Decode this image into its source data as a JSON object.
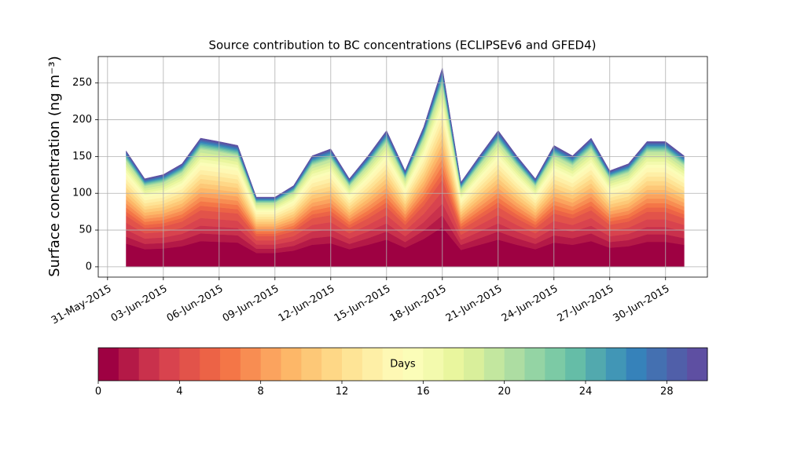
{
  "chart_data": {
    "type": "stacked_area",
    "title": "Source contribution to BC concentrations (ECLIPSEv6 and GFED4)",
    "y_label": "Surface concentration (ng m⁻³)",
    "x": [
      "2015-06-01",
      "2015-06-02",
      "2015-06-03",
      "2015-06-04",
      "2015-06-05",
      "2015-06-06",
      "2015-06-07",
      "2015-06-08",
      "2015-06-09",
      "2015-06-10",
      "2015-06-11",
      "2015-06-12",
      "2015-06-13",
      "2015-06-14",
      "2015-06-15",
      "2015-06-16",
      "2015-06-17",
      "2015-06-18",
      "2015-06-19",
      "2015-06-20",
      "2015-06-21",
      "2015-06-22",
      "2015-06-23",
      "2015-06-24",
      "2015-06-25",
      "2015-06-26",
      "2015-06-27",
      "2015-06-28",
      "2015-06-29",
      "2015-06-30",
      "2015-07-01"
    ],
    "xlim": [
      "2015-05-30T12:00",
      "2015-07-02T06:00"
    ],
    "xticks": [
      {
        "value": "2015-05-31",
        "label": "31-May-2015"
      },
      {
        "value": "2015-06-03",
        "label": "03-Jun-2015"
      },
      {
        "value": "2015-06-06",
        "label": "06-Jun-2015"
      },
      {
        "value": "2015-06-09",
        "label": "09-Jun-2015"
      },
      {
        "value": "2015-06-12",
        "label": "12-Jun-2015"
      },
      {
        "value": "2015-06-15",
        "label": "15-Jun-2015"
      },
      {
        "value": "2015-06-18",
        "label": "18-Jun-2015"
      },
      {
        "value": "2015-06-21",
        "label": "21-Jun-2015"
      },
      {
        "value": "2015-06-24",
        "label": "24-Jun-2015"
      },
      {
        "value": "2015-06-27",
        "label": "27-Jun-2015"
      },
      {
        "value": "2015-06-30",
        "label": "30-Jun-2015"
      }
    ],
    "ylim": [
      -14,
      286
    ],
    "yticks": [
      0,
      50,
      100,
      150,
      200,
      250
    ],
    "grid": true,
    "series": [
      {
        "color": "#9e0142",
        "values": [
          31.6,
          24,
          25,
          28,
          35,
          34,
          33,
          19,
          19,
          22,
          30,
          32,
          24,
          30,
          37,
          26,
          38,
          54,
          23,
          30,
          37,
          30,
          24,
          33,
          30,
          35,
          26,
          28,
          34,
          34,
          30
        ]
      },
      {
        "color": "#b41947",
        "values": [
          9.5,
          7.2,
          7.5,
          8.4,
          10.5,
          10.2,
          9.9,
          5.7,
          5.7,
          6.6,
          9,
          9.6,
          7.2,
          9,
          11.1,
          7.8,
          11.4,
          16.2,
          6.9,
          9,
          11.1,
          9,
          7.2,
          9.9,
          9,
          10.5,
          7.8,
          8.4,
          10.2,
          10.2,
          9
        ]
      },
      {
        "color": "#c9314c",
        "values": [
          9.5,
          7.2,
          7.5,
          8.4,
          10.5,
          10.2,
          9.9,
          5.7,
          5.7,
          6.6,
          9,
          9.6,
          7.2,
          9,
          11.1,
          7.8,
          11.4,
          16.2,
          6.9,
          9,
          11.1,
          9,
          7.2,
          9.9,
          9,
          10.5,
          7.8,
          8.4,
          10.2,
          10.2,
          9
        ]
      },
      {
        "color": "#d8434e",
        "values": [
          9.5,
          7.2,
          7.5,
          8.4,
          10.5,
          10.2,
          9.9,
          5.7,
          5.7,
          6.6,
          9,
          9.6,
          7.2,
          9,
          11.1,
          7.8,
          11.4,
          16.2,
          6.9,
          9,
          11.1,
          9,
          7.2,
          9.9,
          9,
          10.5,
          7.8,
          8.4,
          10.2,
          10.2,
          9
        ]
      },
      {
        "color": "#e2534a",
        "values": [
          9.5,
          7.2,
          7.5,
          8.4,
          10.5,
          10.2,
          9.9,
          5.7,
          5.7,
          6.6,
          9,
          9.6,
          7.2,
          9,
          11.1,
          7.8,
          11.4,
          16.2,
          6.9,
          9,
          11.1,
          9,
          7.2,
          9.9,
          9,
          10.5,
          7.8,
          8.4,
          10.2,
          10.2,
          9
        ]
      },
      {
        "color": "#ec6346",
        "values": [
          5.5,
          4.2,
          4.4,
          4.9,
          6.1,
          6,
          5.8,
          3.3,
          3.3,
          3.9,
          5.3,
          5.6,
          4.2,
          5.3,
          6.5,
          4.6,
          6.7,
          9.5,
          4,
          5.3,
          6.5,
          5.3,
          4.2,
          5.8,
          5.3,
          6.1,
          4.6,
          4.9,
          6,
          6,
          5.3
        ]
      },
      {
        "color": "#f47647",
        "values": [
          5.5,
          4.2,
          4.4,
          4.9,
          6.1,
          6,
          5.8,
          3.3,
          3.3,
          3.9,
          5.3,
          5.6,
          4.2,
          5.3,
          6.5,
          4.6,
          6.7,
          9.5,
          4,
          5.3,
          6.5,
          5.3,
          4.2,
          5.8,
          5.3,
          6.1,
          4.6,
          4.9,
          6,
          6,
          5.3
        ]
      },
      {
        "color": "#f88d52",
        "values": [
          5.5,
          4.2,
          4.4,
          4.9,
          6.1,
          6,
          5.8,
          3.3,
          3.3,
          3.9,
          5.3,
          5.6,
          4.2,
          5.3,
          6.5,
          4.6,
          6.7,
          9.5,
          4,
          5.3,
          6.5,
          5.3,
          4.2,
          5.8,
          5.3,
          6.1,
          4.6,
          4.9,
          6,
          6,
          5.3
        ]
      },
      {
        "color": "#fba35e",
        "values": [
          5.5,
          4.2,
          4.4,
          4.9,
          6.1,
          6,
          5.8,
          3.3,
          3.3,
          3.9,
          5.3,
          5.6,
          4.2,
          5.3,
          6.5,
          4.6,
          6.7,
          9.5,
          4,
          5.3,
          6.5,
          5.3,
          4.2,
          5.8,
          5.3,
          6.1,
          4.6,
          4.9,
          6,
          6,
          5.3
        ]
      },
      {
        "color": "#fdb768",
        "values": [
          5.5,
          4.2,
          4.4,
          4.9,
          6.1,
          6,
          5.8,
          3.3,
          3.3,
          3.9,
          5.3,
          5.6,
          4.2,
          5.3,
          6.5,
          4.6,
          6.7,
          9.5,
          4,
          5.3,
          6.5,
          5.3,
          4.2,
          5.8,
          5.3,
          6.1,
          4.6,
          4.9,
          6,
          6,
          5.3
        ]
      },
      {
        "color": "#fdc877",
        "values": [
          5.5,
          4.2,
          4.4,
          4.9,
          6.1,
          6,
          5.8,
          3.3,
          3.3,
          3.9,
          5.3,
          5.6,
          4.2,
          5.3,
          6.5,
          4.6,
          6.7,
          9.5,
          4,
          5.3,
          6.5,
          5.3,
          4.2,
          5.8,
          5.3,
          6.1,
          4.6,
          4.9,
          6,
          6,
          5.3
        ]
      },
      {
        "color": "#fed786",
        "values": [
          5.5,
          4.2,
          4.4,
          4.9,
          6.1,
          6,
          5.8,
          3.3,
          3.3,
          3.9,
          5.3,
          5.6,
          4.2,
          5.3,
          6.5,
          4.6,
          6.7,
          9.5,
          4,
          5.3,
          6.5,
          5.3,
          4.2,
          5.8,
          5.3,
          6.1,
          4.6,
          4.9,
          6,
          6,
          5.3
        ]
      },
      {
        "color": "#fee496",
        "values": [
          5.5,
          4.2,
          4.4,
          4.9,
          6.1,
          6,
          5.8,
          3.3,
          3.3,
          3.9,
          5.3,
          5.6,
          4.2,
          5.3,
          6.5,
          4.6,
          6.7,
          9.5,
          4,
          5.3,
          6.5,
          5.3,
          4.2,
          5.8,
          5.3,
          6.1,
          4.6,
          4.9,
          6,
          6,
          5.3
        ]
      },
      {
        "color": "#feefa6",
        "values": [
          5.5,
          4.2,
          4.4,
          4.9,
          6.1,
          6,
          5.8,
          3.3,
          3.3,
          3.9,
          5.3,
          5.6,
          4.2,
          5.3,
          6.5,
          4.6,
          6.7,
          9.5,
          4,
          5.3,
          6.5,
          5.3,
          4.2,
          5.8,
          5.3,
          6.1,
          4.6,
          4.9,
          6,
          6,
          5.3
        ]
      },
      {
        "color": "#fef8b4",
        "values": [
          5.5,
          4.2,
          4.4,
          4.9,
          6.1,
          6,
          5.8,
          3.3,
          3.3,
          3.9,
          5.3,
          5.6,
          4.2,
          5.3,
          6.5,
          4.6,
          6.7,
          9.5,
          4,
          5.3,
          6.5,
          5.3,
          4.2,
          5.8,
          5.3,
          6.1,
          4.6,
          4.9,
          6,
          6,
          5.3
        ]
      },
      {
        "color": "#fbfdb8",
        "values": [
          4,
          3,
          3.1,
          3.5,
          4.4,
          4.3,
          4.1,
          2.4,
          2.4,
          2.8,
          3.8,
          4,
          3,
          3.8,
          4.6,
          3.3,
          4.8,
          6.8,
          2.9,
          3.8,
          4.6,
          3.8,
          3,
          4.1,
          3.8,
          4.4,
          3.3,
          3.5,
          4.3,
          4.3,
          3.8
        ]
      },
      {
        "color": "#f3faad",
        "values": [
          4,
          3,
          3.1,
          3.5,
          4.4,
          4.3,
          4.1,
          2.4,
          2.4,
          2.8,
          3.8,
          4,
          3,
          3.8,
          4.6,
          3.3,
          4.8,
          6.8,
          2.9,
          3.8,
          4.6,
          3.8,
          3,
          4.1,
          3.8,
          4.4,
          3.3,
          3.5,
          4.3,
          4.3,
          3.8
        ]
      },
      {
        "color": "#e9f69e",
        "values": [
          4,
          3,
          3.1,
          3.5,
          4.4,
          4.3,
          4.1,
          2.4,
          2.4,
          2.8,
          3.8,
          4,
          3,
          3.8,
          4.6,
          3.3,
          4.8,
          6.8,
          2.9,
          3.8,
          4.6,
          3.8,
          3,
          4.1,
          3.8,
          4.4,
          3.3,
          3.5,
          4.3,
          4.3,
          3.8
        ]
      },
      {
        "color": "#d9ef9b",
        "values": [
          4,
          3,
          3.1,
          3.5,
          4.4,
          4.3,
          4.1,
          2.4,
          2.4,
          2.8,
          3.8,
          4,
          3,
          3.8,
          4.6,
          3.3,
          4.8,
          6.8,
          2.9,
          3.8,
          4.6,
          3.8,
          3,
          4.1,
          3.8,
          4.4,
          3.3,
          3.5,
          4.3,
          4.3,
          3.8
        ]
      },
      {
        "color": "#c3e79f",
        "values": [
          4,
          3,
          3.1,
          3.5,
          4.4,
          4.3,
          4.1,
          2.4,
          2.4,
          2.8,
          3.8,
          4,
          3,
          3.8,
          4.6,
          3.3,
          4.8,
          6.8,
          2.9,
          3.8,
          4.6,
          3.8,
          3,
          4.1,
          3.8,
          4.4,
          3.3,
          3.5,
          4.3,
          4.3,
          3.8
        ]
      },
      {
        "color": "#addda2",
        "values": [
          1.3,
          1,
          1.1,
          1.2,
          1.5,
          1.4,
          1.4,
          0.8,
          0.8,
          0.9,
          1.3,
          1.4,
          1,
          1.3,
          1.6,
          1.1,
          1.6,
          2.3,
          1,
          1.3,
          1.6,
          1.3,
          1,
          1.4,
          1.3,
          1.5,
          1.1,
          1.2,
          1.4,
          1.4,
          1.3
        ]
      },
      {
        "color": "#94d4a4",
        "values": [
          1.3,
          1,
          1.1,
          1.2,
          1.5,
          1.4,
          1.4,
          0.8,
          0.8,
          0.9,
          1.3,
          1.4,
          1,
          1.3,
          1.6,
          1.1,
          1.6,
          2.3,
          1,
          1.3,
          1.6,
          1.3,
          1,
          1.4,
          1.3,
          1.5,
          1.1,
          1.2,
          1.4,
          1.4,
          1.3
        ]
      },
      {
        "color": "#7ccaa5",
        "values": [
          1.3,
          1,
          1.1,
          1.2,
          1.5,
          1.4,
          1.4,
          0.8,
          0.8,
          0.9,
          1.3,
          1.4,
          1,
          1.3,
          1.6,
          1.1,
          1.6,
          2.3,
          1,
          1.3,
          1.6,
          1.3,
          1,
          1.4,
          1.3,
          1.5,
          1.1,
          1.2,
          1.4,
          1.4,
          1.3
        ]
      },
      {
        "color": "#65bda7",
        "values": [
          1.3,
          1,
          1.1,
          1.2,
          1.5,
          1.4,
          1.4,
          0.8,
          0.8,
          0.9,
          1.3,
          1.4,
          1,
          1.3,
          1.6,
          1.1,
          1.6,
          2.3,
          1,
          1.3,
          1.6,
          1.3,
          1,
          1.4,
          1.3,
          1.5,
          1.1,
          1.2,
          1.4,
          1.4,
          1.3
        ]
      },
      {
        "color": "#52a9ae",
        "values": [
          1.3,
          1,
          1.1,
          1.2,
          1.5,
          1.4,
          1.4,
          0.8,
          0.8,
          0.9,
          1.3,
          1.4,
          1,
          1.3,
          1.6,
          1.1,
          1.6,
          2.3,
          1,
          1.3,
          1.6,
          1.3,
          1,
          1.4,
          1.3,
          1.5,
          1.1,
          1.2,
          1.4,
          1.4,
          1.3
        ]
      },
      {
        "color": "#4196b6",
        "values": [
          1.3,
          1,
          1.1,
          1.2,
          1.5,
          1.4,
          1.4,
          0.8,
          0.8,
          0.9,
          1.3,
          1.4,
          1,
          1.3,
          1.6,
          1.1,
          1.6,
          2.3,
          1,
          1.3,
          1.6,
          1.3,
          1,
          1.4,
          1.3,
          1.5,
          1.1,
          1.2,
          1.4,
          1.4,
          1.3
        ]
      },
      {
        "color": "#3682ba",
        "values": [
          1.3,
          1,
          1.1,
          1.2,
          1.5,
          1.4,
          1.4,
          0.8,
          0.8,
          0.9,
          1.3,
          1.4,
          1,
          1.3,
          1.6,
          1.1,
          1.6,
          2.3,
          1,
          1.3,
          1.6,
          1.3,
          1,
          1.4,
          1.3,
          1.5,
          1.1,
          1.2,
          1.4,
          1.4,
          1.3
        ]
      },
      {
        "color": "#4470b1",
        "values": [
          1.3,
          1,
          1.1,
          1.2,
          1.5,
          1.4,
          1.4,
          0.8,
          0.8,
          0.9,
          1.3,
          1.4,
          1,
          1.3,
          1.6,
          1.1,
          1.6,
          2.3,
          1,
          1.3,
          1.6,
          1.3,
          1,
          1.4,
          1.3,
          1.5,
          1.1,
          1.2,
          1.4,
          1.4,
          1.3
        ]
      },
      {
        "color": "#505fa9",
        "values": [
          1.3,
          1,
          1.1,
          1.2,
          1.5,
          1.4,
          1.4,
          0.8,
          0.8,
          0.9,
          1.3,
          1.4,
          1,
          1.3,
          1.6,
          1.1,
          1.6,
          2.3,
          1,
          1.3,
          1.6,
          1.3,
          1,
          1.4,
          1.3,
          1.5,
          1.1,
          1.2,
          1.4,
          1.4,
          1.3
        ]
      },
      {
        "color": "#5e4fa2",
        "values": [
          1.3,
          1,
          1.1,
          1.2,
          1.5,
          1.4,
          1.4,
          0.8,
          0.8,
          0.9,
          1.3,
          1.4,
          1,
          1.3,
          1.6,
          1.1,
          1.6,
          2.3,
          1,
          1.3,
          1.6,
          1.3,
          1,
          1.4,
          1.3,
          1.5,
          1.1,
          1.2,
          1.4,
          1.4,
          1.3
        ]
      }
    ],
    "colorbar": {
      "label": "Days",
      "lim": [
        0,
        30
      ],
      "ticks": [
        0,
        4,
        8,
        12,
        16,
        20,
        24,
        28
      ]
    }
  }
}
